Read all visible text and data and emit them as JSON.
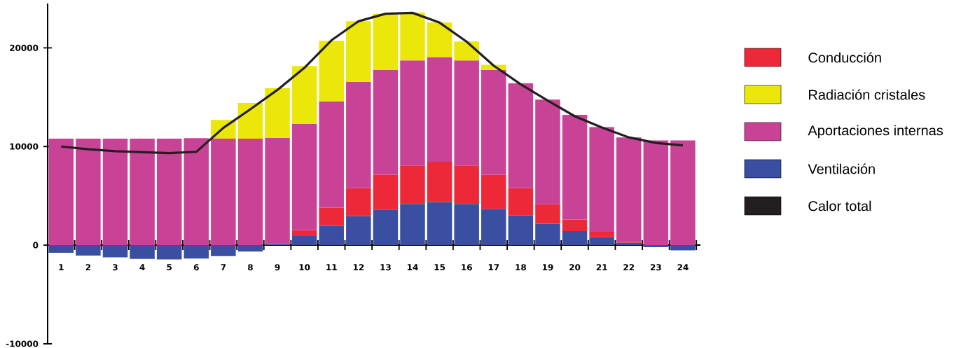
{
  "chart_data": {
    "type": "bar",
    "stacked": true,
    "legend": "right",
    "categories": [
      "1",
      "2",
      "3",
      "4",
      "5",
      "6",
      "7",
      "8",
      "9",
      "10",
      "11",
      "12",
      "13",
      "14",
      "15",
      "16",
      "17",
      "18",
      "19",
      "20",
      "21",
      "22",
      "23",
      "24"
    ],
    "ylim": [
      -10000,
      24500
    ],
    "yticks": [
      -10000,
      0,
      10000,
      20000
    ],
    "series": [
      {
        "name": "Ventilación",
        "color": "#3a4ea2",
        "values": [
          -780,
          -1060,
          -1230,
          -1390,
          -1440,
          -1350,
          -1110,
          -640,
          100,
          940,
          1940,
          2930,
          3610,
          4180,
          4370,
          4180,
          3680,
          3000,
          2170,
          1420,
          800,
          260,
          -210,
          -520
        ]
      },
      {
        "name": "Conducción",
        "color": "#ed2939",
        "values": [
          0,
          0,
          0,
          0,
          0,
          0,
          0,
          0,
          0,
          590,
          1860,
          2850,
          3540,
          3910,
          4080,
          3910,
          3470,
          2780,
          1980,
          1180,
          550,
          120,
          0,
          0
        ]
      },
      {
        "name": "Aportaciones internas",
        "color": "#c84396",
        "values": [
          10800,
          10800,
          10800,
          10800,
          10800,
          10850,
          10800,
          10800,
          10780,
          10770,
          10780,
          10790,
          10600,
          10650,
          10620,
          10650,
          10620,
          10620,
          10600,
          10620,
          10620,
          10550,
          10620,
          10620
        ]
      },
      {
        "name": "Radiación cristales",
        "color": "#ece70a",
        "values": [
          0,
          0,
          0,
          0,
          0,
          0,
          1900,
          3620,
          5030,
          5870,
          6140,
          6130,
          5710,
          4840,
          3520,
          1910,
          520,
          0,
          0,
          0,
          0,
          0,
          0,
          0
        ]
      },
      {
        "name": "Calor total",
        "color": "#231f20",
        "type": "line",
        "values": [
          10000,
          9720,
          9530,
          9420,
          9340,
          9460,
          11890,
          13780,
          15740,
          17980,
          20770,
          22700,
          23460,
          23550,
          22560,
          20630,
          18200,
          16310,
          14660,
          13070,
          11940,
          10930,
          10360,
          10120
        ]
      }
    ]
  }
}
